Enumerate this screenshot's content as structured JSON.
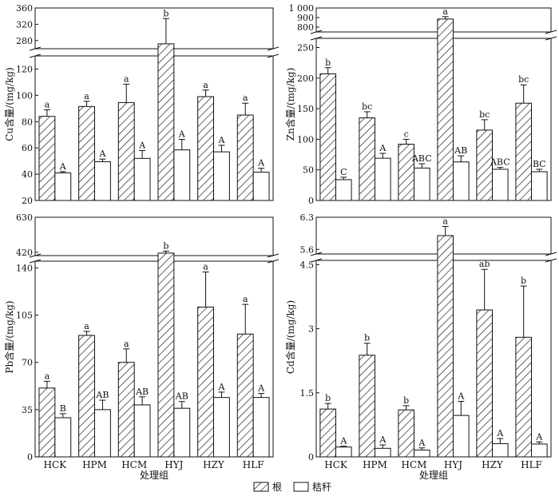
{
  "figure": {
    "legend": {
      "root_label": "根",
      "stem_label": "秸秆",
      "placement": "bottom-center"
    },
    "colors": {
      "root_fill": "hatched",
      "stem_fill": "#ffffff",
      "stroke": "#111111"
    }
  },
  "chart_data": [
    {
      "type": "bar",
      "panel": "top-left",
      "categories": [
        "HCK",
        "HPM",
        "HCM",
        "HYJ",
        "HZY",
        "HLF"
      ],
      "series": [
        {
          "name": "根",
          "values": [
            84,
            91.5,
            94.5,
            272,
            99,
            85
          ],
          "errors": [
            5,
            4,
            14,
            62,
            5,
            9
          ],
          "labels": [
            "a",
            "a",
            "a",
            "b",
            "a",
            "a"
          ]
        },
        {
          "name": "秸秆",
          "values": [
            41,
            49.5,
            52,
            58.5,
            57,
            41.5
          ],
          "errors": [
            1,
            2,
            6,
            8,
            5,
            3
          ],
          "labels": [
            "A",
            "A",
            "A",
            "A",
            "A",
            "A"
          ]
        }
      ],
      "ylabel": "Cu含量/(mg/kg)",
      "xlabel": "",
      "ylim": [
        20,
        360
      ],
      "axis_break": [
        130,
        260
      ],
      "yticks_lower": [
        20,
        40,
        60,
        80,
        100,
        120
      ],
      "yticks_upper": [
        280,
        320,
        360
      ],
      "show_xticklabels": false
    },
    {
      "type": "bar",
      "panel": "top-right",
      "categories": [
        "HCK",
        "HPM",
        "HCM",
        "HYJ",
        "HZY",
        "HLF"
      ],
      "series": [
        {
          "name": "根",
          "values": [
            207,
            135,
            92,
            885,
            115,
            159
          ],
          "errors": [
            10,
            10,
            8,
            25,
            17,
            30
          ],
          "labels": [
            "b",
            "bc",
            "c",
            "a",
            "bc",
            "bc"
          ]
        },
        {
          "name": "秸秆",
          "values": [
            34,
            69,
            53,
            63,
            51,
            47
          ],
          "errors": [
            4,
            8,
            7,
            10,
            3,
            4
          ],
          "labels": [
            "C",
            "A",
            "ABC",
            "AB",
            "ABC",
            "BC"
          ]
        }
      ],
      "ylabel": "Zn含量/(mg/kg)",
      "xlabel": "",
      "ylim": [
        0,
        1000
      ],
      "axis_break": [
        265,
        750
      ],
      "yticks_lower": [
        0,
        50,
        100,
        150,
        200,
        250
      ],
      "yticks_upper": [
        800,
        900,
        "1 000"
      ],
      "show_xticklabels": false
    },
    {
      "type": "bar",
      "panel": "bottom-left",
      "categories": [
        "HCK",
        "HPM",
        "HCM",
        "HYJ",
        "HZY",
        "HLF"
      ],
      "series": [
        {
          "name": "根",
          "values": [
            51,
            90,
            70,
            415,
            111,
            91
          ],
          "errors": [
            5,
            3,
            10,
            12,
            26,
            22
          ],
          "labels": [
            "a",
            "a",
            "a",
            "b",
            "a",
            "a"
          ]
        },
        {
          "name": "秸秆",
          "values": [
            29,
            35,
            38.5,
            36,
            44,
            44
          ],
          "errors": [
            3,
            7,
            6,
            5,
            4,
            3
          ],
          "labels": [
            "B",
            "AB",
            "AB",
            "AB",
            "A",
            "A"
          ]
        }
      ],
      "ylabel": "Pb含量/(mg/kg)",
      "xlabel": "处理组",
      "ylim": [
        0,
        630
      ],
      "axis_break": [
        145,
        400
      ],
      "yticks_lower": [
        0,
        35,
        70,
        105,
        140
      ],
      "yticks_upper": [
        420,
        630
      ],
      "show_xticklabels": true
    },
    {
      "type": "bar",
      "panel": "bottom-right",
      "categories": [
        "HCK",
        "HPM",
        "HCM",
        "HYJ",
        "HZY",
        "HLF"
      ],
      "series": [
        {
          "name": "根",
          "values": [
            1.12,
            2.38,
            1.1,
            5.9,
            3.44,
            2.8
          ],
          "errors": [
            0.13,
            0.28,
            0.1,
            0.2,
            0.95,
            1.2
          ],
          "labels": [
            "b",
            "b",
            "b",
            "a",
            "ab",
            "b"
          ]
        },
        {
          "name": "秸秆",
          "values": [
            0.23,
            0.2,
            0.16,
            0.97,
            0.31,
            0.3
          ],
          "errors": [
            0.02,
            0.08,
            0.05,
            0.33,
            0.12,
            0.05
          ],
          "labels": [
            "A",
            "A",
            "A",
            "A",
            "A",
            "A"
          ]
        }
      ],
      "ylabel": "Cd含量/(mg/kg)",
      "xlabel": "处理组",
      "ylim": [
        0,
        6.3
      ],
      "axis_break": [
        4.6,
        5.5
      ],
      "yticks_lower": [
        0,
        1.5,
        3.0,
        4.5
      ],
      "yticks_upper": [
        5.6,
        6.3
      ],
      "show_xticklabels": true
    }
  ]
}
